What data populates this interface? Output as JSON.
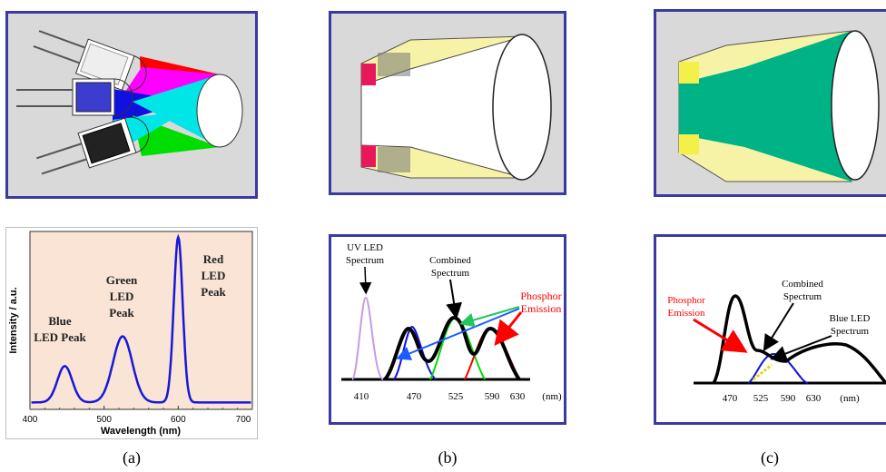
{
  "colors": {
    "frame": "#3a3aa0",
    "panel_bg": "#d9d9d9",
    "chart_bg_a": "#f9e4d6",
    "red": "#ff0000",
    "green": "#00dd00",
    "blue": "#1010e0",
    "magenta": "#ff00ff",
    "cyan": "#00e5e5",
    "teal_fill": "#00b386",
    "yellow_cone": "#f7f3a6",
    "phosphor_pink": "#e8195a",
    "phosphor_yellow": "#f3f049",
    "uv_purple": "#c59be8"
  },
  "captions": {
    "a": "(a)",
    "b": "(b)",
    "c": "(c)"
  },
  "panel_a_chart": {
    "ylabel": "Intensity / a.u.",
    "xlabel": "Wavelength (nm)",
    "peak_blue": [
      "Blue",
      "LED Peak"
    ],
    "peak_green": [
      "Green",
      "LED",
      "Peak"
    ],
    "peak_red": [
      "Red",
      "LED",
      "Peak"
    ]
  },
  "panel_b_chart": {
    "uv_label": [
      "UV LED",
      "Spectrum"
    ],
    "combined_label": [
      "Combined",
      "Spectrum"
    ],
    "phosphor_label": [
      "Phosphor",
      "Emission"
    ],
    "unit": "(nm)"
  },
  "panel_c_chart": {
    "phosphor_label": [
      "Phosphor",
      "Emission"
    ],
    "combined_label": [
      "Combined",
      "Spectrum"
    ],
    "blue_label": [
      "Blue LED",
      "Spectrum"
    ],
    "unit": "(nm)"
  },
  "chart_data": [
    {
      "type": "line",
      "xlabel": "Wavelength (nm)",
      "ylabel": "Intensity / a.u.",
      "xlim": [
        400,
        700
      ],
      "x_ticks": [
        "400",
        "500",
        "600",
        "700"
      ],
      "peaks": [
        {
          "x": 447,
          "y": 0.22
        },
        {
          "x": 525,
          "y": 0.4
        },
        {
          "x": 600,
          "y": 1.0
        }
      ]
    },
    {
      "type": "line",
      "x_ticks": [
        "410",
        "470",
        "525",
        "590",
        "630"
      ],
      "series": [
        {
          "peaks": [
            {
              "x": 410,
              "y": 0.82
            }
          ]
        },
        {
          "peaks": [
            {
              "x": 457,
              "y": 0.55
            },
            {
              "x": 525,
              "y": 0.72
            },
            {
              "x": 590,
              "y": 0.58
            }
          ]
        }
      ]
    },
    {
      "type": "line",
      "x_ticks": [
        "470",
        "525",
        "590",
        "630"
      ],
      "series": [
        {
          "peaks": [
            {
              "x": 470,
              "y": 1.0
            }
          ]
        },
        {
          "peaks": [
            {
              "x": 620,
              "y": 0.32
            }
          ]
        }
      ]
    }
  ]
}
